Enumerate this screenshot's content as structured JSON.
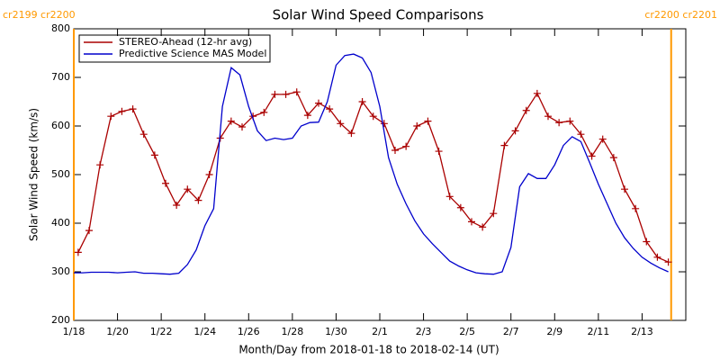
{
  "chart_data": {
    "type": "line",
    "title": "Solar Wind Speed Comparisons",
    "xlabel": "Month/Day from 2018-01-18 to 2018-02-14 (UT)",
    "ylabel": "Solar Wind Speed (km/s)",
    "xlim": [
      0,
      28
    ],
    "ylim": [
      200,
      800
    ],
    "yticks": [
      200,
      300,
      400,
      500,
      600,
      700,
      800
    ],
    "xticks": [
      {
        "value": 0,
        "label": "1/18"
      },
      {
        "value": 2,
        "label": "1/20"
      },
      {
        "value": 4,
        "label": "1/22"
      },
      {
        "value": 6,
        "label": "1/24"
      },
      {
        "value": 8,
        "label": "1/26"
      },
      {
        "value": 10,
        "label": "1/28"
      },
      {
        "value": 12,
        "label": "1/30"
      },
      {
        "value": 14,
        "label": "2/1"
      },
      {
        "value": 16,
        "label": "2/3"
      },
      {
        "value": 18,
        "label": "2/5"
      },
      {
        "value": 20,
        "label": "2/7"
      },
      {
        "value": 22,
        "label": "2/9"
      },
      {
        "value": 24,
        "label": "2/11"
      },
      {
        "value": 26,
        "label": "2/13"
      }
    ],
    "legend": "upper left",
    "markers": [
      {
        "x": 0,
        "label": "cr2199 cr2200",
        "color": "#ff9900"
      },
      {
        "x": 27.33,
        "label": "cr2200 cr2201",
        "color": "#ff9900"
      }
    ],
    "series": [
      {
        "name": "STEREO-Ahead (12-hr avg)",
        "color": "#aa0000",
        "marker": "+",
        "x": [
          0.2,
          0.7,
          1.2,
          1.7,
          2.2,
          2.7,
          3.2,
          3.7,
          4.2,
          4.7,
          5.2,
          5.7,
          6.2,
          6.7,
          7.2,
          7.7,
          8.2,
          8.7,
          9.2,
          9.7,
          10.2,
          10.7,
          11.2,
          11.7,
          12.2,
          12.7,
          13.2,
          13.7,
          14.2,
          14.7,
          15.2,
          15.7,
          16.2,
          16.7,
          17.2,
          17.7,
          18.2,
          18.7,
          19.2,
          19.7,
          20.2,
          20.7,
          21.2,
          21.7,
          22.2,
          22.7,
          23.2,
          23.7,
          24.2,
          24.7,
          25.2,
          25.7,
          26.2,
          26.7,
          27.2
        ],
        "values": [
          340,
          385,
          520,
          620,
          630,
          635,
          583,
          540,
          482,
          437,
          470,
          447,
          500,
          575,
          610,
          598,
          620,
          628,
          665,
          665,
          670,
          622,
          647,
          635,
          605,
          585,
          650,
          620,
          605,
          550,
          558,
          600,
          610,
          548,
          455,
          432,
          403,
          392,
          420,
          560,
          590,
          632,
          667,
          620,
          607,
          610,
          583,
          538,
          573,
          535,
          470,
          430,
          362,
          330,
          320
        ]
      },
      {
        "name": "Predictive Science MAS Model",
        "color": "#0000cc",
        "x": [
          0,
          0.4,
          0.8,
          1.2,
          1.6,
          2,
          2.4,
          2.8,
          3.2,
          3.6,
          4,
          4.4,
          4.8,
          5.2,
          5.6,
          6,
          6.4,
          6.8,
          7.2,
          7.6,
          8,
          8.4,
          8.8,
          9.2,
          9.6,
          10,
          10.4,
          10.8,
          11.2,
          11.6,
          12,
          12.4,
          12.8,
          13.2,
          13.6,
          14,
          14.4,
          14.8,
          15.2,
          15.6,
          16,
          16.4,
          16.8,
          17.2,
          17.6,
          18,
          18.4,
          18.8,
          19.2,
          19.6,
          20,
          20.4,
          20.8,
          21.2,
          21.6,
          22,
          22.4,
          22.8,
          23.2,
          23.6,
          24,
          24.4,
          24.8,
          25.2,
          25.6,
          26,
          26.4,
          26.8,
          27.2
        ],
        "values": [
          298,
          298,
          299,
          299,
          299,
          298,
          299,
          300,
          297,
          297,
          296,
          295,
          297,
          315,
          345,
          395,
          430,
          640,
          720,
          705,
          640,
          590,
          570,
          575,
          572,
          575,
          600,
          607,
          608,
          650,
          725,
          745,
          748,
          740,
          710,
          640,
          535,
          480,
          440,
          405,
          378,
          358,
          340,
          322,
          312,
          304,
          298,
          296,
          295,
          300,
          350,
          475,
          502,
          492,
          492,
          520,
          560,
          578,
          568,
          525,
          480,
          440,
          400,
          370,
          348,
          330,
          318,
          308,
          300
        ]
      }
    ]
  }
}
